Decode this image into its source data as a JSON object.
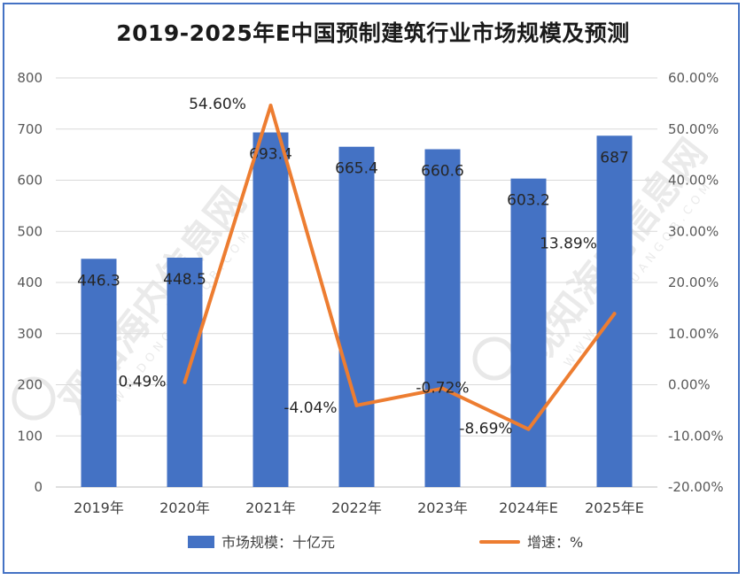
{
  "title": "2019-2025年E中国预制建筑行业市场规模及预测",
  "watermark": {
    "text": "观知海内信息网",
    "url": "WWW.DONGUANGQB.COM"
  },
  "chart_data": {
    "type": "bar",
    "categories": [
      "2019年",
      "2020年",
      "2021年",
      "2022年",
      "2023年",
      "2024年E",
      "2025年E"
    ],
    "series": [
      {
        "name": "市场规模：十亿元",
        "type": "bar",
        "axis": "left",
        "values": [
          446.3,
          448.5,
          693.4,
          665.4,
          660.6,
          603.2,
          687
        ],
        "labels": [
          "446.3",
          "448.5",
          "693.4",
          "665.4",
          "660.6",
          "603.2",
          "687"
        ],
        "color": "#4472c4"
      },
      {
        "name": "增速：%",
        "type": "line",
        "axis": "right",
        "values": [
          null,
          0.49,
          54.6,
          -4.04,
          -0.72,
          -8.69,
          13.89
        ],
        "labels": [
          "",
          "0.49%",
          "54.60%",
          "-4.04%",
          "-0.72%",
          "-8.69%",
          "13.89%"
        ],
        "color": "#ed7d31"
      }
    ],
    "y_left": {
      "min": 0,
      "max": 800,
      "step": 100,
      "ticks": [
        "0",
        "100",
        "200",
        "300",
        "400",
        "500",
        "600",
        "700",
        "800"
      ]
    },
    "y_right": {
      "min": -20,
      "max": 60,
      "step": 10,
      "ticks": [
        "-20.00%",
        "-10.00%",
        "0.00%",
        "10.00%",
        "20.00%",
        "30.00%",
        "40.00%",
        "50.00%",
        "60.00%"
      ]
    },
    "grid": true,
    "legend_position": "bottom"
  }
}
